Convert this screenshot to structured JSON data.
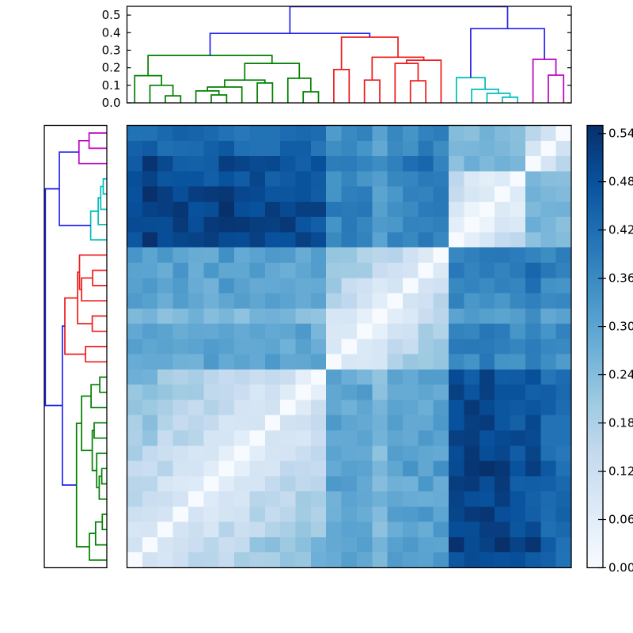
{
  "figure": {
    "background": "#ffffff",
    "description_visible_text_only": true
  },
  "chart_data": {
    "type": "heatmap",
    "subtype": "clustered-distance-matrix-with-dendrograms",
    "n_leaves": 29,
    "top_axis": {
      "ticks": [
        {
          "label": "0.0",
          "value": 0.0
        },
        {
          "label": "0.1",
          "value": 0.1
        },
        {
          "label": "0.2",
          "value": 0.2
        },
        {
          "label": "0.3",
          "value": 0.3
        },
        {
          "label": "0.4",
          "value": 0.4
        },
        {
          "label": "0.5",
          "value": 0.5
        }
      ],
      "ylim": [
        0,
        0.55
      ]
    },
    "clusters": {
      "green": {
        "range": [
          1,
          13
        ]
      },
      "red": {
        "range": [
          14,
          21
        ]
      },
      "cyan": {
        "range": [
          22,
          26
        ]
      },
      "magenta": {
        "range": [
          27,
          29
        ]
      }
    },
    "link_colors": {
      "g": "#008000",
      "r": "#ee1c1c",
      "c": "#00bcbc",
      "m": "#bf00bf",
      "b": "#2222ee"
    },
    "linkage": [
      [
        30,
        3,
        4,
        0.04,
        "g"
      ],
      [
        31,
        2,
        30,
        0.1,
        "g"
      ],
      [
        32,
        1,
        31,
        0.155,
        "g"
      ],
      [
        33,
        6,
        7,
        0.045,
        "g"
      ],
      [
        34,
        5,
        33,
        0.068,
        "g"
      ],
      [
        35,
        34,
        8,
        0.09,
        "g"
      ],
      [
        36,
        9,
        10,
        0.113,
        "g"
      ],
      [
        37,
        35,
        36,
        0.13,
        "g"
      ],
      [
        38,
        12,
        13,
        0.063,
        "g"
      ],
      [
        39,
        11,
        38,
        0.14,
        "g"
      ],
      [
        40,
        37,
        39,
        0.225,
        "g"
      ],
      [
        41,
        32,
        40,
        0.27,
        "g"
      ],
      [
        42,
        14,
        15,
        0.19,
        "r"
      ],
      [
        43,
        16,
        17,
        0.13,
        "r"
      ],
      [
        44,
        19,
        20,
        0.126,
        "r"
      ],
      [
        45,
        18,
        44,
        0.225,
        "r"
      ],
      [
        46,
        45,
        21,
        0.243,
        "r"
      ],
      [
        47,
        43,
        46,
        0.26,
        "r"
      ],
      [
        48,
        42,
        47,
        0.374,
        "r"
      ],
      [
        49,
        25,
        26,
        0.032,
        "c"
      ],
      [
        50,
        24,
        49,
        0.054,
        "c"
      ],
      [
        51,
        23,
        50,
        0.077,
        "c"
      ],
      [
        52,
        22,
        51,
        0.144,
        "c"
      ],
      [
        53,
        28,
        29,
        0.158,
        "m"
      ],
      [
        54,
        27,
        53,
        0.248,
        "m"
      ],
      [
        55,
        41,
        48,
        0.396,
        "b"
      ],
      [
        56,
        52,
        54,
        0.423,
        "b"
      ],
      [
        57,
        55,
        56,
        0.548,
        "b"
      ]
    ],
    "block_distances": {
      "green": {
        "green": 0.26,
        "red": 0.3,
        "cyan": 0.5,
        "magenta": 0.48
      },
      "red": {
        "green": 0.3,
        "red": 0.24,
        "cyan": 0.37,
        "magenta": 0.4
      },
      "cyan": {
        "green": 0.5,
        "red": 0.37,
        "cyan": 0.13,
        "magenta": 0.26
      },
      "magenta": {
        "green": 0.48,
        "red": 0.4,
        "cyan": 0.26,
        "magenta": 0.2
      }
    },
    "within_profile": {
      "min_factor": 0.25,
      "span_factor": 0.75
    },
    "jitter_amplitude": 0.07,
    "leaf_bias": [
      1,
      1.05,
      1,
      1,
      1,
      1,
      1.04,
      1,
      1,
      1,
      1,
      1,
      0.96,
      1,
      1,
      1,
      0.84,
      0.96,
      1,
      1.03,
      1.02,
      1,
      1,
      1.03,
      1,
      0.95,
      1,
      0.92,
      0.88
    ],
    "colorbar": {
      "vmin": 0.0,
      "vmax": 0.55,
      "ticks": [
        {
          "label": "0.00",
          "value": 0.0
        },
        {
          "label": "0.06",
          "value": 0.06
        },
        {
          "label": "0.12",
          "value": 0.12
        },
        {
          "label": "0.18",
          "value": 0.18
        },
        {
          "label": "0.24",
          "value": 0.24
        },
        {
          "label": "0.30",
          "value": 0.3
        },
        {
          "label": "0.36",
          "value": 0.36
        },
        {
          "label": "0.42",
          "value": 0.42
        },
        {
          "label": "0.48",
          "value": 0.48
        },
        {
          "label": "0.54",
          "value": 0.54
        }
      ],
      "cmap_name_visual": "blues-sequential",
      "cmap_stops": [
        [
          0.0,
          247,
          251,
          255
        ],
        [
          0.125,
          222,
          235,
          247
        ],
        [
          0.25,
          198,
          219,
          239
        ],
        [
          0.375,
          158,
          202,
          225
        ],
        [
          0.5,
          107,
          174,
          214
        ],
        [
          0.625,
          66,
          146,
          198
        ],
        [
          0.75,
          33,
          113,
          181
        ],
        [
          0.875,
          8,
          81,
          156
        ],
        [
          1.0,
          8,
          48,
          107
        ]
      ]
    },
    "frame_color": "#000000",
    "diagonal_value": 0.0
  }
}
